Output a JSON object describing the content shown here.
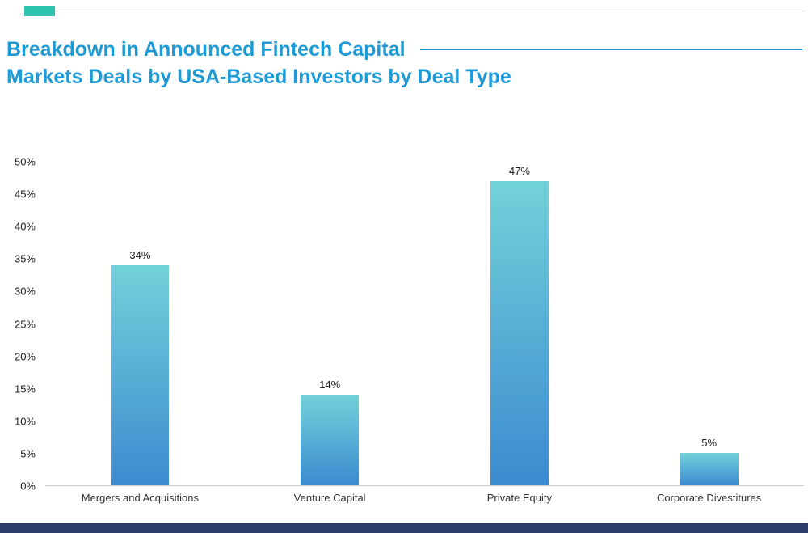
{
  "page": {
    "accent_color": "#2ec4b0",
    "title_color": "#1e9bd6",
    "footer_color": "#2d3c6b",
    "axis_line_color": "#cccccc"
  },
  "header": {
    "title_line1": "Breakdown in Announced Fintech Capital",
    "title_line2": "Markets Deals by USA-Based Investors by Deal Type"
  },
  "chart_data": {
    "type": "bar",
    "title": "Breakdown in Announced Fintech Capital Markets Deals by USA-Based Investors by Deal Type",
    "categories": [
      "Mergers and Acquisitions",
      "Venture Capital",
      "Private Equity",
      "Corporate Divestitures"
    ],
    "values": [
      34,
      14,
      47,
      5
    ],
    "value_labels": [
      "34%",
      "14%",
      "47%",
      "5%"
    ],
    "xlabel": "",
    "ylabel": "",
    "ylim": [
      0,
      50
    ],
    "ytick_step": 5,
    "ytick_labels": [
      "0%",
      "5%",
      "10%",
      "15%",
      "20%",
      "25%",
      "30%",
      "35%",
      "40%",
      "45%",
      "50%"
    ],
    "grid": false,
    "legend": false,
    "bar_gradient_top": "#72d2d9",
    "bar_gradient_bottom": "#3b8bd0"
  }
}
